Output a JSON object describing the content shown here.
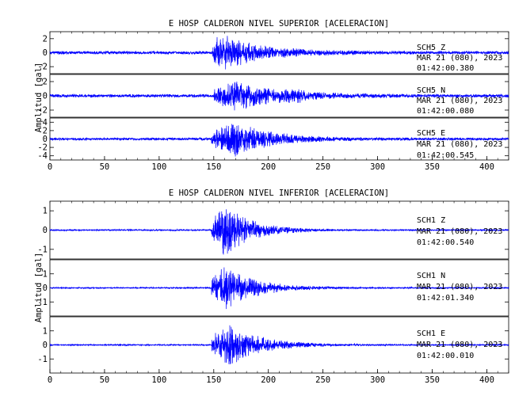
{
  "chart_data": [
    {
      "type": "line",
      "title": "E HOSP CALDERON NIVEL SUPERIOR [ACELERACION]",
      "ylabel": "Amplitud [gal]",
      "xlim": [
        0,
        420
      ],
      "xticks": [
        0,
        50,
        100,
        150,
        200,
        250,
        300,
        350,
        400
      ],
      "color": "#0000ff",
      "panels": [
        {
          "ylim": [
            -3,
            3
          ],
          "yticks": [
            -2,
            0,
            2
          ],
          "channel": "SCH5   Z",
          "date": "MAR 21 (080), 2023",
          "time": "01:42:00.380",
          "envelope": {
            "noise": 0.25,
            "peak": 2.8,
            "onset": 149,
            "peak_t": 155,
            "rise": 3,
            "decay": 35,
            "burst_t": null,
            "burst_a": 0
          }
        },
        {
          "ylim": [
            -3,
            3
          ],
          "yticks": [
            -2,
            0,
            2
          ],
          "channel": "SCH5   N",
          "date": "MAR 21 (080), 2023",
          "time": "01:42:00.080",
          "envelope": {
            "noise": 0.25,
            "peak": 2.0,
            "onset": 150,
            "peak_t": 170,
            "rise": 10,
            "decay": 40,
            "burst_t": 225,
            "burst_a": 0.45
          }
        },
        {
          "ylim": [
            -5,
            5
          ],
          "yticks": [
            -4,
            -2,
            0,
            2,
            4
          ],
          "channel": "SCH5   E",
          "date": "MAR 21 (080), 2023",
          "time": "01:42:00.545",
          "envelope": {
            "noise": 0.35,
            "peak": 4.2,
            "onset": 148,
            "peak_t": 170,
            "rise": 10,
            "decay": 32,
            "burst_t": null,
            "burst_a": 0
          }
        }
      ]
    },
    {
      "type": "line",
      "title": "E HOSP CALDERON NIVEL INFERIOR [ACELERACION]",
      "ylabel": "Amplitud [gal]",
      "xlim": [
        0,
        420
      ],
      "xticks": [
        0,
        50,
        100,
        150,
        200,
        250,
        300,
        350,
        400
      ],
      "color": "#0000ff",
      "panels": [
        {
          "ylim": [
            -1.5,
            1.5
          ],
          "yticks": [
            -1,
            0,
            1
          ],
          "channel": "SCH1   Z",
          "date": "MAR 21 (080), 2023",
          "time": "01:42:00.540",
          "envelope": {
            "noise": 0.04,
            "peak": 1.4,
            "onset": 148,
            "peak_t": 160,
            "rise": 5,
            "decay": 25,
            "burst_t": null,
            "burst_a": 0
          }
        },
        {
          "ylim": [
            -2,
            2
          ],
          "yticks": [
            -1,
            0,
            1
          ],
          "channel": "SCH1   N",
          "date": "MAR 21 (080), 2023",
          "time": "01:42:01.340",
          "envelope": {
            "noise": 0.05,
            "peak": 1.6,
            "onset": 148,
            "peak_t": 160,
            "rise": 5,
            "decay": 28,
            "burst_t": null,
            "burst_a": 0
          }
        },
        {
          "ylim": [
            -2,
            2
          ],
          "yticks": [
            -1,
            0,
            1
          ],
          "channel": "SCH1   E",
          "date": "MAR 21 (080), 2023",
          "time": "01:42:00.010",
          "envelope": {
            "noise": 0.05,
            "peak": 1.6,
            "onset": 148,
            "peak_t": 162,
            "rise": 6,
            "decay": 30,
            "burst_t": null,
            "burst_a": 0
          }
        }
      ]
    }
  ]
}
